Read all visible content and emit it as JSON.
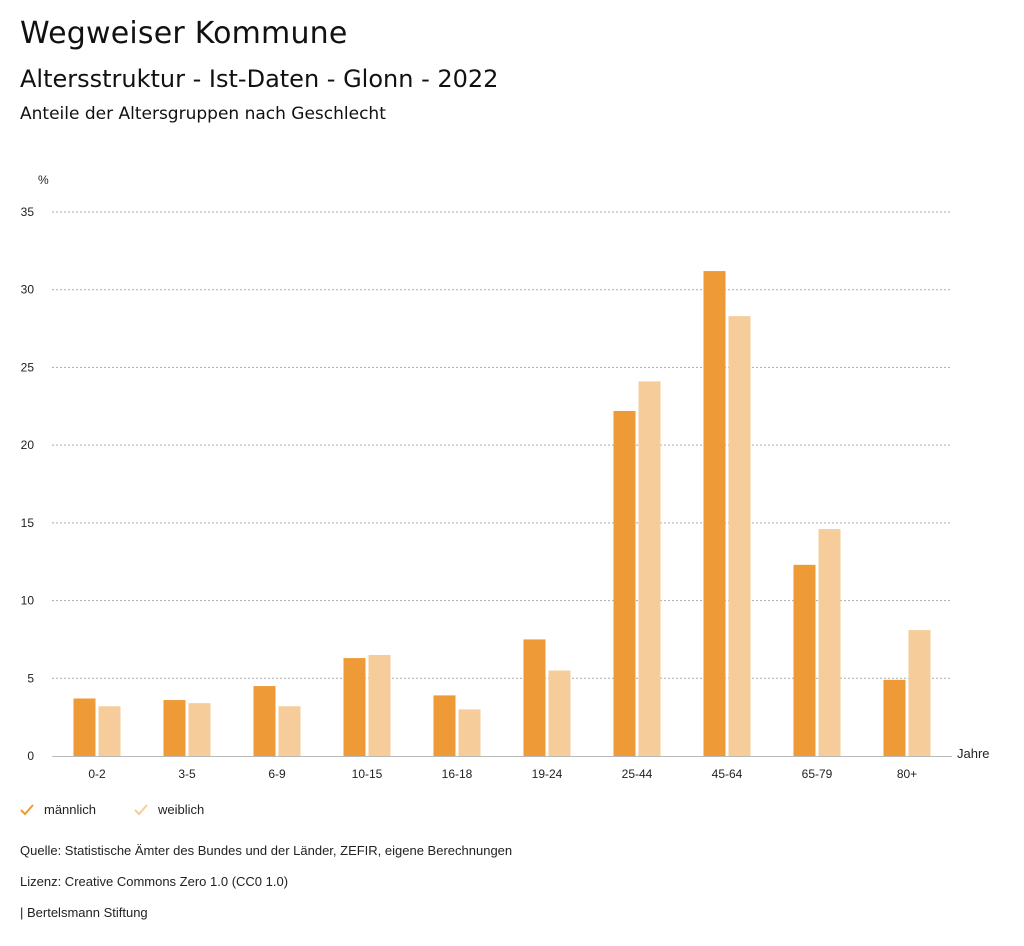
{
  "header": {
    "title": "Wegweiser Kommune",
    "subtitle": "Altersstruktur - Ist-Daten - Glonn - 2022",
    "subsubtitle": "Anteile der Altersgruppen nach Geschlecht"
  },
  "colors": {
    "maennlich": "#ED9A37",
    "weiblich": "#F5CC9A",
    "grid": "#AAAAAA"
  },
  "chart_data": {
    "type": "bar",
    "title": "Anteile der Altersgruppen nach Geschlecht",
    "ylabel": "%",
    "xlabel": "Jahre",
    "ylim": [
      0,
      35
    ],
    "yticks": [
      0,
      5,
      10,
      15,
      20,
      25,
      30,
      35
    ],
    "grid": true,
    "categories": [
      "0-2",
      "3-5",
      "6-9",
      "10-15",
      "16-18",
      "19-24",
      "25-44",
      "45-64",
      "65-79",
      "80+"
    ],
    "series": [
      {
        "name": "männlich",
        "values": [
          3.7,
          3.6,
          4.5,
          6.3,
          3.9,
          7.5,
          22.2,
          31.2,
          12.3,
          4.9
        ]
      },
      {
        "name": "weiblich",
        "values": [
          3.2,
          3.4,
          3.2,
          6.5,
          3.0,
          5.5,
          24.1,
          28.3,
          14.6,
          8.1
        ]
      }
    ],
    "legend_position": "bottom-left"
  },
  "legend": {
    "items": [
      "männlich",
      "weiblich"
    ]
  },
  "footer": {
    "source": "Quelle: Statistische Ämter des Bundes und der Länder, ZEFIR, eigene Berechnungen",
    "license": "Lizenz: Creative Commons Zero 1.0 (CC0 1.0)",
    "brand": "| Bertelsmann Stiftung"
  }
}
